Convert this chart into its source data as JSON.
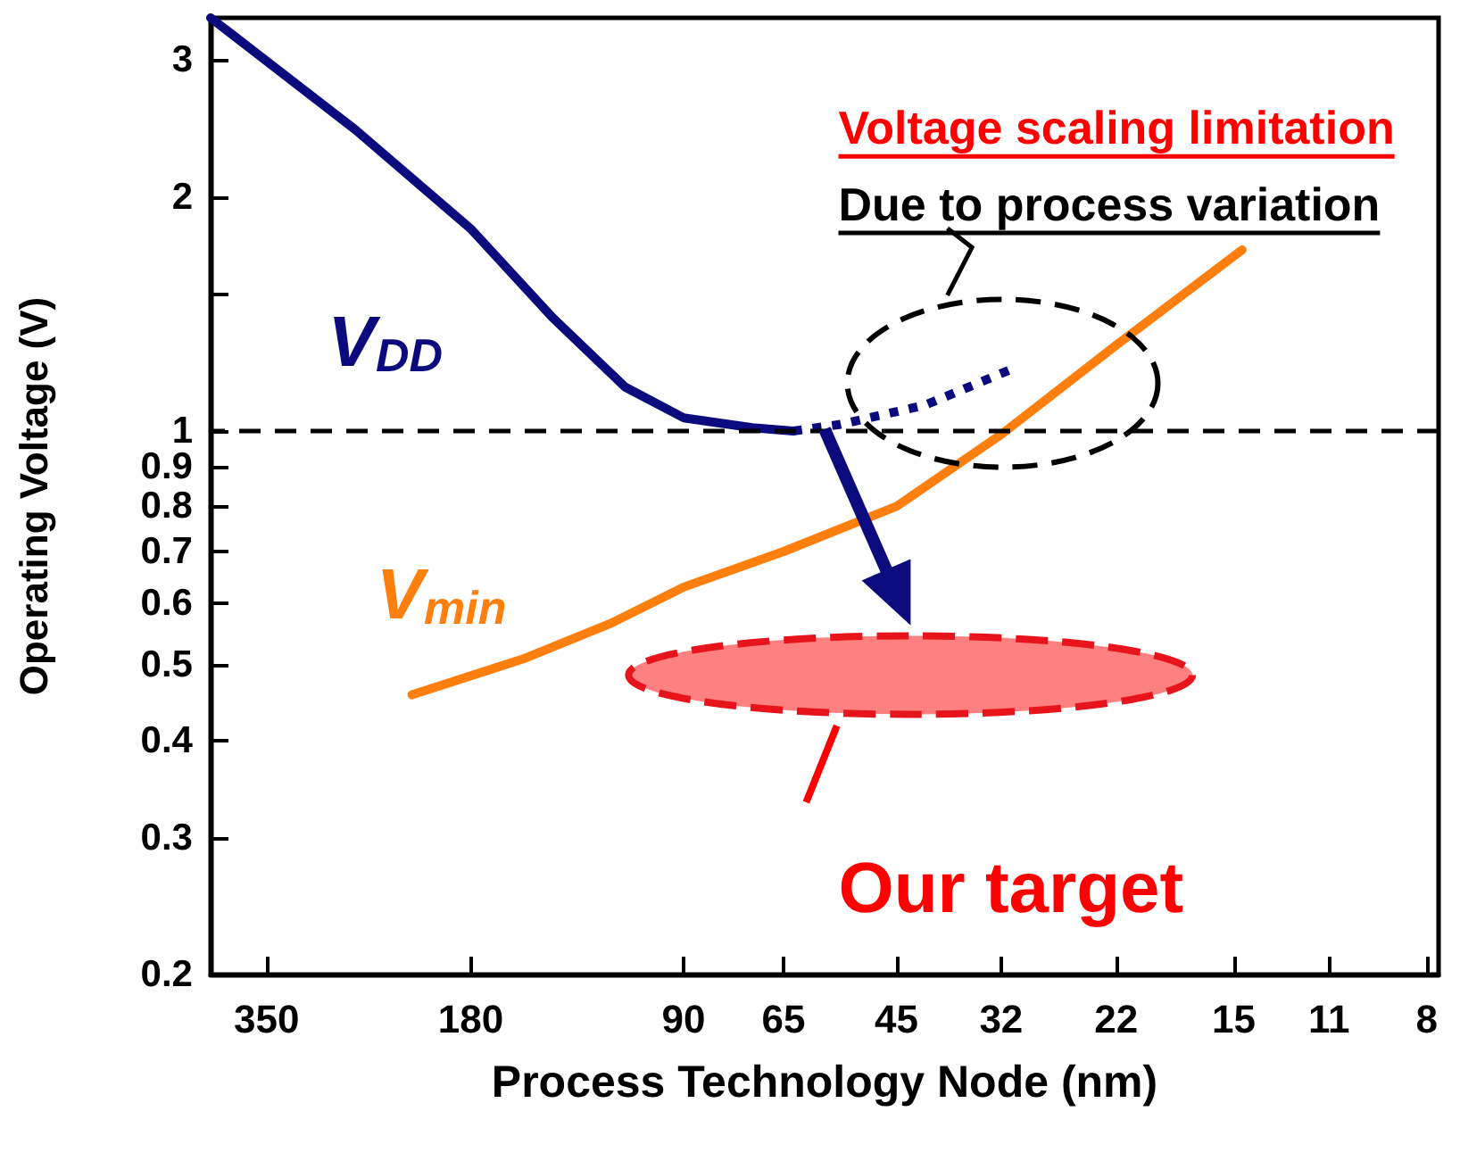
{
  "chart_data": {
    "type": "line",
    "xlabel": "Process Technology Node (nm)",
    "ylabel": "Operating Voltage (V)",
    "log": "xy",
    "xlim": [
      420,
      7.7
    ],
    "ylim": [
      0.2,
      3.4
    ],
    "xticks": [
      350,
      180,
      90,
      65,
      45,
      32,
      22,
      15,
      11,
      8
    ],
    "yticks": [
      0.2,
      0.3,
      0.4,
      0.5,
      0.6,
      0.7,
      0.8,
      0.9,
      1,
      {
        "value": 1.5,
        "label": null
      },
      2,
      3
    ],
    "grid": false,
    "legend": false,
    "marker": "none",
    "series": [
      {
        "name": "V$_{DD}$",
        "color": "#0b0b7e",
        "line_style": "solid",
        "x": [
          420,
          262,
          180,
          138,
          109,
          90,
          72,
          63
        ],
        "values": [
          3.4,
          2.44,
          1.82,
          1.4,
          1.14,
          1.04,
          1.01,
          1.0
        ]
      },
      {
        "color": "#0b0b7e",
        "line_style": "dotted",
        "x": [
          63,
          54,
          41,
          31
        ],
        "values": [
          1.0,
          1.02,
          1.08,
          1.2
        ]
      },
      {
        "name": "V$_{min}$",
        "color": "#ff7f0e",
        "line_style": "solid",
        "x": [
          218,
          152,
          114,
          90,
          65,
          45,
          32,
          22,
          14.6
        ],
        "values": [
          0.458,
          0.509,
          0.566,
          0.63,
          0.7,
          0.8,
          0.99,
          1.29,
          1.71
        ]
      }
    ],
    "ref_lines": [
      {
        "axis": "y",
        "value": 1,
        "color": "#000000",
        "line_style": "dashed"
      }
    ],
    "annotations": [
      "Voltage scaling limitation",
      "Due to process variation",
      "Our target"
    ]
  }
}
